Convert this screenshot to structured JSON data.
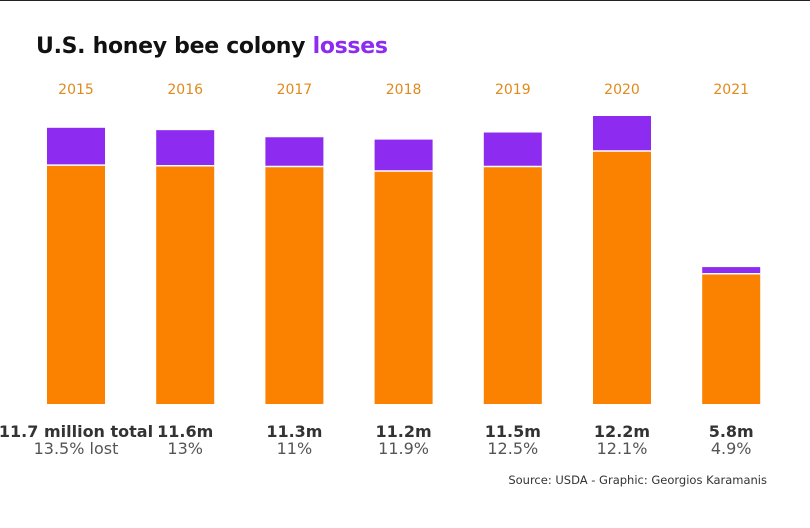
{
  "title": {
    "main": "U.S. honey bee colony",
    "highlight": "losses"
  },
  "source": "Source: USDA - Graphic: Georgios Karamanis",
  "colors": {
    "remaining": "#fb8200",
    "lost": "#8d2cf0",
    "year_label": "#e08a1c"
  },
  "chart_data": {
    "type": "bar",
    "stacked": true,
    "categories": [
      "2015",
      "2016",
      "2017",
      "2018",
      "2019",
      "2020",
      "2021"
    ],
    "series": [
      {
        "name": "remaining",
        "values": [
          10.12,
          10.09,
          10.06,
          9.87,
          10.06,
          10.72,
          5.52
        ]
      },
      {
        "name": "lost",
        "values": [
          1.58,
          1.51,
          1.24,
          1.33,
          1.44,
          1.48,
          0.28
        ]
      }
    ],
    "total_labels": [
      "11.7 million total",
      "11.6m",
      "11.3m",
      "11.2m",
      "11.5m",
      "12.2m",
      "5.8m"
    ],
    "loss_labels": [
      "13.5% lost",
      "13%",
      "11%",
      "11.9%",
      "12.5%",
      "12.1%",
      "4.9%"
    ],
    "ylim": [
      0,
      12.2
    ],
    "grid": false,
    "legend": "none"
  }
}
